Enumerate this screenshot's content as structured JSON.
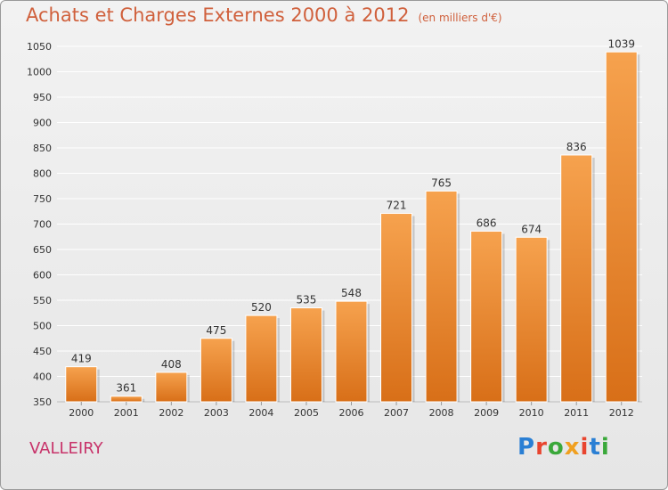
{
  "header": {
    "title": "Achats et Charges Externes 2000 à 2012",
    "subtitle": "(en milliers d'€)"
  },
  "footer": {
    "commune": "VALLEIRY",
    "logo": "Proxiti"
  },
  "colors": {
    "bar_top": "#f6a24e",
    "bar_bottom": "#d86f18",
    "title": "#d0603c",
    "commune": "#c8336a",
    "grid": "#ffffff"
  },
  "chart_data": {
    "type": "bar",
    "categories": [
      "2000",
      "2001",
      "2002",
      "2003",
      "2004",
      "2005",
      "2006",
      "2007",
      "2008",
      "2009",
      "2010",
      "2011",
      "2012"
    ],
    "values": [
      419,
      361,
      408,
      475,
      520,
      535,
      548,
      721,
      765,
      686,
      674,
      836,
      1039
    ],
    "title": "Achats et Charges Externes 2000 à 2012",
    "ylim": [
      350,
      1050
    ],
    "yticks": [
      350,
      400,
      450,
      500,
      550,
      600,
      650,
      700,
      750,
      800,
      850,
      900,
      950,
      1000,
      1050
    ],
    "grid": true
  }
}
